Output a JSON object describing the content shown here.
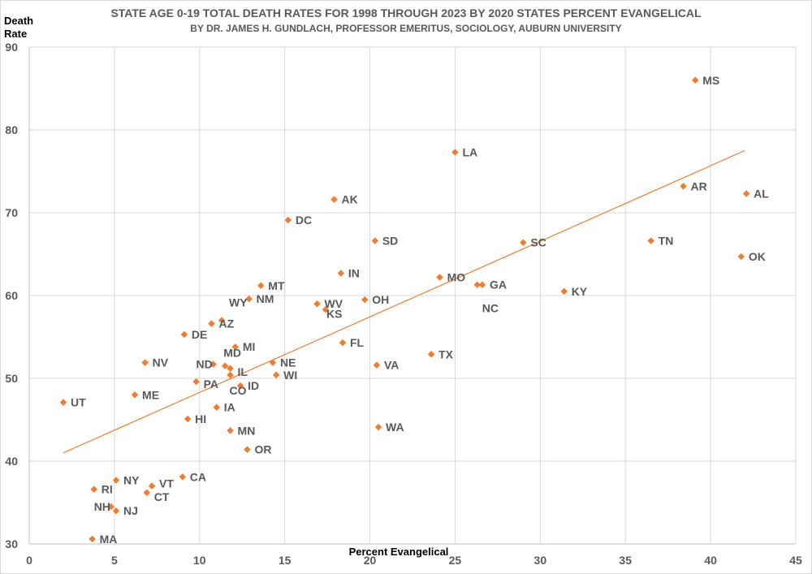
{
  "chart_data": {
    "type": "scatter",
    "title": "STATE AGE 0-19 TOTAL DEATH RATES FOR 1998 THROUGH 2023 BY 2020 STATES PERCENT EVANGELICAL",
    "subtitle": "BY DR. JAMES H. GUNDLACH, PROFESSOR EMERITUS, SOCIOLOGY, AUBURN UNIVERSITY",
    "xlabel": "Percent Evangelical",
    "ylabel": "Death Rate",
    "xlim": [
      0,
      45
    ],
    "ylim": [
      30,
      90
    ],
    "x_ticks": [
      0,
      5,
      10,
      15,
      20,
      25,
      30,
      35,
      40,
      45
    ],
    "y_ticks": [
      30,
      40,
      50,
      60,
      70,
      80,
      90
    ],
    "grid": true,
    "marker_color": "#ED7D31",
    "trendline": {
      "color": "#ED7D31",
      "x": [
        2.0,
        42.0
      ],
      "y": [
        41.0,
        77.5
      ]
    },
    "points": [
      {
        "label": "MS",
        "x": 39.1,
        "y": 86.0
      },
      {
        "label": "LA",
        "x": 25.0,
        "y": 77.3
      },
      {
        "label": "AK",
        "x": 17.9,
        "y": 71.6
      },
      {
        "label": "AR",
        "x": 38.4,
        "y": 73.2
      },
      {
        "label": "AL",
        "x": 42.1,
        "y": 72.3
      },
      {
        "label": "DC",
        "x": 15.2,
        "y": 69.1
      },
      {
        "label": "SD",
        "x": 20.3,
        "y": 66.6
      },
      {
        "label": "SC",
        "x": 29.0,
        "y": 66.4
      },
      {
        "label": "TN",
        "x": 36.5,
        "y": 66.6
      },
      {
        "label": "OK",
        "x": 41.8,
        "y": 64.7
      },
      {
        "label": "IN",
        "x": 18.3,
        "y": 62.7
      },
      {
        "label": "MO",
        "x": 24.1,
        "y": 62.2
      },
      {
        "label": "GA",
        "x": 26.6,
        "y": 61.3
      },
      {
        "label": "NC",
        "x": 26.3,
        "y": 61.3
      },
      {
        "label": "KY",
        "x": 31.4,
        "y": 60.5
      },
      {
        "label": "MT",
        "x": 13.6,
        "y": 61.2
      },
      {
        "label": "NM",
        "x": 12.9,
        "y": 59.6
      },
      {
        "label": "WV",
        "x": 16.9,
        "y": 59.0
      },
      {
        "label": "KS",
        "x": 17.4,
        "y": 58.3
      },
      {
        "label": "OH",
        "x": 19.7,
        "y": 59.5
      },
      {
        "label": "WY",
        "x": 11.3,
        "y": 57.0
      },
      {
        "label": "AZ",
        "x": 10.7,
        "y": 56.6
      },
      {
        "label": "DE",
        "x": 9.1,
        "y": 55.3
      },
      {
        "label": "FL",
        "x": 18.4,
        "y": 54.3
      },
      {
        "label": "MI",
        "x": 12.1,
        "y": 53.8
      },
      {
        "label": "MD",
        "x": 11.5,
        "y": 51.5
      },
      {
        "label": "TX",
        "x": 23.6,
        "y": 52.9
      },
      {
        "label": "NV",
        "x": 6.8,
        "y": 51.9
      },
      {
        "label": "ND",
        "x": 10.8,
        "y": 51.7
      },
      {
        "label": "NE",
        "x": 14.3,
        "y": 51.9
      },
      {
        "label": "IL",
        "x": 11.8,
        "y": 51.2
      },
      {
        "label": "VA",
        "x": 20.4,
        "y": 51.6
      },
      {
        "label": "WI",
        "x": 14.5,
        "y": 50.4
      },
      {
        "label": "CO",
        "x": 11.8,
        "y": 50.4
      },
      {
        "label": "PA",
        "x": 9.8,
        "y": 49.6
      },
      {
        "label": "ID",
        "x": 12.4,
        "y": 49.1
      },
      {
        "label": "ME",
        "x": 6.2,
        "y": 48.0
      },
      {
        "label": "UT",
        "x": 2.0,
        "y": 47.1
      },
      {
        "label": "IA",
        "x": 11.0,
        "y": 46.5
      },
      {
        "label": "HI",
        "x": 9.3,
        "y": 45.1
      },
      {
        "label": "WA",
        "x": 20.5,
        "y": 44.1
      },
      {
        "label": "MN",
        "x": 11.8,
        "y": 43.7
      },
      {
        "label": "OR",
        "x": 12.8,
        "y": 41.4
      },
      {
        "label": "CA",
        "x": 9.0,
        "y": 38.1
      },
      {
        "label": "NY",
        "x": 5.1,
        "y": 37.7
      },
      {
        "label": "VT",
        "x": 7.2,
        "y": 37.0
      },
      {
        "label": "RI",
        "x": 3.8,
        "y": 36.6
      },
      {
        "label": "CT",
        "x": 6.9,
        "y": 36.2
      },
      {
        "label": "NH",
        "x": 4.8,
        "y": 34.5
      },
      {
        "label": "NJ",
        "x": 5.1,
        "y": 34.0
      },
      {
        "label": "MA",
        "x": 3.7,
        "y": 30.6
      }
    ]
  }
}
